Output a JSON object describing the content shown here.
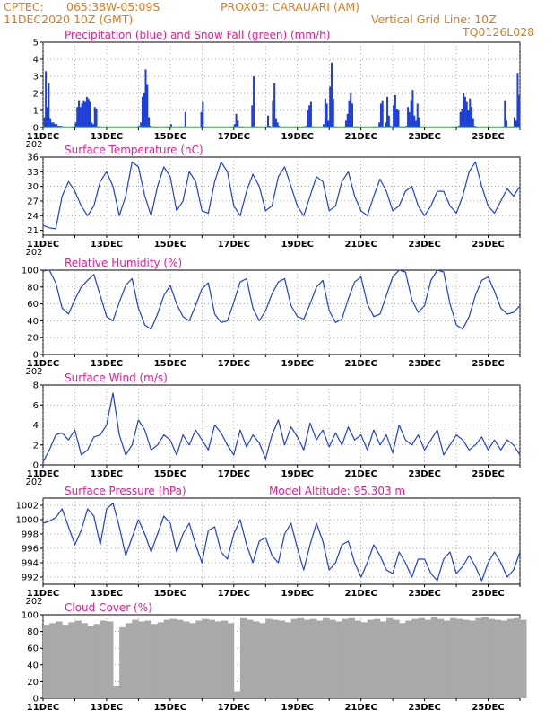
{
  "header": {
    "source": "CPTEC:",
    "coords": "065:38W-05:09S",
    "station": "PROX03: CARAUARI (AM)",
    "run": "11DEC2020 10Z (GMT)",
    "grid_note": "Vertical Grid Line: 10Z",
    "code": "TQ0126L028"
  },
  "colors": {
    "header": "#e07b1a",
    "title": "#e0208e",
    "line": "#1f3fd9",
    "snow": "#1aa81a",
    "cloud": "#a9a9a9"
  },
  "x_axis": {
    "labels": [
      "11DEC",
      "13DEC",
      "15DEC",
      "17DEC",
      "19DEC",
      "21DEC",
      "23DEC",
      "25DEC"
    ],
    "year_fragment": "202"
  },
  "chart_data": [
    {
      "type": "bar",
      "title": "Precipitation (blue) and Snow Fall (green) (mm/h)",
      "ylim": [
        0,
        5
      ],
      "yticks": [
        "0",
        "1",
        "2",
        "3",
        "4",
        "5"
      ],
      "x_range_days": [
        0,
        15
      ],
      "series": [
        {
          "name": "Precipitation",
          "x": [
            0.02,
            0.06,
            0.1,
            0.15,
            0.2,
            0.25,
            0.3,
            0.35,
            0.4,
            0.45,
            0.5,
            0.55,
            1.0,
            1.05,
            1.1,
            1.15,
            1.2,
            1.25,
            1.3,
            1.35,
            1.4,
            1.45,
            1.5,
            1.55,
            1.6,
            1.65,
            3.0,
            3.05,
            3.1,
            3.15,
            3.2,
            3.25,
            3.3,
            3.35,
            4.0,
            4.45,
            4.95,
            5.0,
            6.0,
            6.05,
            6.1,
            6.55,
            6.6,
            7.05,
            7.1,
            7.2,
            7.25,
            7.3,
            7.35,
            7.4,
            8.25,
            8.3,
            8.35,
            8.4,
            8.8,
            8.85,
            8.9,
            8.95,
            9.0,
            9.05,
            9.1,
            9.5,
            9.55,
            9.6,
            9.65,
            9.7,
            10.55,
            10.6,
            10.65,
            10.75,
            10.8,
            10.85,
            10.9,
            11.0,
            11.05,
            11.1,
            11.15,
            11.4,
            11.45,
            11.5,
            11.55,
            11.6,
            11.65,
            11.7,
            11.75,
            11.8,
            13.05,
            13.1,
            13.15,
            13.2,
            13.25,
            13.3,
            13.35,
            13.4,
            13.45,
            13.5,
            13.55,
            14.5,
            14.55,
            14.8,
            14.85,
            14.9,
            14.95
          ],
          "values": [
            0.6,
            3.3,
            1.2,
            2.6,
            0.5,
            0.3,
            0.3,
            0.2,
            0.2,
            0.1,
            0.1,
            0.1,
            0.3,
            1.2,
            1.6,
            1.2,
            1.4,
            1.6,
            1.5,
            1.8,
            1.7,
            1.5,
            0.3,
            0.2,
            1.2,
            1.1,
            0.1,
            0.3,
            1.8,
            2.0,
            3.4,
            2.5,
            0.6,
            0.1,
            0.2,
            0.9,
            0.9,
            1.5,
            0.2,
            0.8,
            0.4,
            1.3,
            3.0,
            0.7,
            0.1,
            1.6,
            2.6,
            0.5,
            0.3,
            0.1,
            0.1,
            1.0,
            1.3,
            1.5,
            0.2,
            1.7,
            1.4,
            0.4,
            2.4,
            3.8,
            1.7,
            0.4,
            0.8,
            1.6,
            2.0,
            1.4,
            0.3,
            1.4,
            1.6,
            0.3,
            1.8,
            0.7,
            0.1,
            1.3,
            1.9,
            1.1,
            1.0,
            0.1,
            1.2,
            0.9,
            1.6,
            2.2,
            0.7,
            0.4,
            1.4,
            0.6,
            0.1,
            0.9,
            1.1,
            2.0,
            1.8,
            1.5,
            1.0,
            1.7,
            1.2,
            0.5,
            0.1,
            1.6,
            0.4,
            0.6,
            0.4,
            3.2,
            1.9
          ]
        },
        {
          "name": "Snow Fall",
          "x": [
            0,
            15
          ],
          "values": [
            0,
            0
          ]
        }
      ]
    },
    {
      "type": "line",
      "title": "Surface Temperature (nC)",
      "ylim": [
        20,
        36
      ],
      "yticks": [
        "21",
        "24",
        "27",
        "30",
        "33",
        "36"
      ],
      "x": [
        0,
        0.2,
        0.4,
        0.6,
        0.8,
        1.0,
        1.2,
        1.4,
        1.6,
        1.8,
        2.0,
        2.2,
        2.4,
        2.6,
        2.8,
        3.0,
        3.2,
        3.4,
        3.6,
        3.8,
        4.0,
        4.2,
        4.4,
        4.6,
        4.8,
        5.0,
        5.2,
        5.4,
        5.6,
        5.8,
        6.0,
        6.2,
        6.4,
        6.6,
        6.8,
        7.0,
        7.2,
        7.4,
        7.6,
        7.8,
        8.0,
        8.2,
        8.4,
        8.6,
        8.8,
        9.0,
        9.2,
        9.4,
        9.6,
        9.8,
        10.0,
        10.2,
        10.4,
        10.6,
        10.8,
        11.0,
        11.2,
        11.4,
        11.6,
        11.8,
        12.0,
        12.2,
        12.4,
        12.6,
        12.8,
        13.0,
        13.2,
        13.4,
        13.6,
        13.8,
        14.0,
        14.2,
        14.4,
        14.6,
        14.8,
        15.0
      ],
      "values": [
        22,
        21.5,
        21.3,
        28,
        31,
        29,
        26,
        24,
        26,
        31,
        33,
        30,
        24,
        28,
        35,
        34,
        28,
        24,
        30,
        34,
        32,
        25,
        27,
        33,
        31,
        25,
        24.5,
        31,
        35,
        33,
        26,
        24,
        29,
        32.5,
        30,
        25,
        26,
        32,
        34,
        30,
        26,
        24,
        28,
        32,
        31,
        25,
        26,
        31,
        33,
        28,
        25,
        24,
        28,
        31.5,
        29,
        25,
        26,
        29,
        30,
        26,
        24,
        26,
        29,
        29,
        26,
        24.5,
        28,
        33,
        35,
        30,
        26,
        24.5,
        27,
        29.5,
        28,
        30
      ]
    },
    {
      "type": "line",
      "title": "Relative Humidity (%)",
      "ylim": [
        0,
        100
      ],
      "yticks": [
        "0",
        "20",
        "40",
        "60",
        "80",
        "100"
      ],
      "x": [
        0,
        0.2,
        0.4,
        0.6,
        0.8,
        1.0,
        1.2,
        1.4,
        1.6,
        1.8,
        2.0,
        2.2,
        2.4,
        2.6,
        2.8,
        3.0,
        3.2,
        3.4,
        3.6,
        3.8,
        4.0,
        4.2,
        4.4,
        4.6,
        4.8,
        5.0,
        5.2,
        5.4,
        5.6,
        5.8,
        6.0,
        6.2,
        6.4,
        6.6,
        6.8,
        7.0,
        7.2,
        7.4,
        7.6,
        7.8,
        8.0,
        8.2,
        8.4,
        8.6,
        8.8,
        9.0,
        9.2,
        9.4,
        9.6,
        9.8,
        10.0,
        10.2,
        10.4,
        10.6,
        10.8,
        11.0,
        11.2,
        11.4,
        11.6,
        11.8,
        12.0,
        12.2,
        12.4,
        12.6,
        12.8,
        13.0,
        13.2,
        13.4,
        13.6,
        13.8,
        14.0,
        14.2,
        14.4,
        14.6,
        14.8,
        15.0
      ],
      "values": [
        99,
        100,
        85,
        55,
        48,
        65,
        80,
        88,
        95,
        70,
        45,
        40,
        62,
        82,
        90,
        55,
        35,
        30,
        48,
        70,
        82,
        60,
        45,
        40,
        58,
        78,
        85,
        48,
        38,
        40,
        62,
        86,
        90,
        55,
        40,
        52,
        72,
        86,
        90,
        58,
        45,
        42,
        60,
        80,
        88,
        52,
        38,
        42,
        66,
        86,
        92,
        60,
        45,
        48,
        70,
        92,
        100,
        98,
        65,
        50,
        58,
        88,
        100,
        98,
        60,
        35,
        30,
        45,
        70,
        88,
        92,
        75,
        55,
        48,
        50,
        58
      ]
    },
    {
      "type": "line",
      "title": "Surface Wind (m/s)",
      "ylim": [
        0,
        8
      ],
      "yticks": [
        "0",
        "2",
        "4",
        "6",
        "8"
      ],
      "x": [
        0,
        0.2,
        0.4,
        0.6,
        0.8,
        1.0,
        1.2,
        1.4,
        1.6,
        1.8,
        2.0,
        2.2,
        2.4,
        2.6,
        2.8,
        3.0,
        3.2,
        3.4,
        3.6,
        3.8,
        4.0,
        4.2,
        4.4,
        4.6,
        4.8,
        5.0,
        5.2,
        5.4,
        5.6,
        5.8,
        6.0,
        6.2,
        6.4,
        6.6,
        6.8,
        7.0,
        7.2,
        7.4,
        7.6,
        7.8,
        8.0,
        8.2,
        8.4,
        8.6,
        8.8,
        9.0,
        9.2,
        9.4,
        9.6,
        9.8,
        10.0,
        10.2,
        10.4,
        10.6,
        10.8,
        11.0,
        11.2,
        11.4,
        11.6,
        11.8,
        12.0,
        12.2,
        12.4,
        12.6,
        12.8,
        13.0,
        13.2,
        13.4,
        13.6,
        13.8,
        14.0,
        14.2,
        14.4,
        14.6,
        14.8,
        15.0
      ],
      "values": [
        0.3,
        1.5,
        3.0,
        3.2,
        2.5,
        3.5,
        1.0,
        1.5,
        2.8,
        3.0,
        4.0,
        7.2,
        3.0,
        1.0,
        2.0,
        4.5,
        3.5,
        1.5,
        2.0,
        3.0,
        2.5,
        1.0,
        3.0,
        2.0,
        3.5,
        2.5,
        1.5,
        4.0,
        3.2,
        2.0,
        1.0,
        3.5,
        1.8,
        3.0,
        2.2,
        0.6,
        3.0,
        4.5,
        2.0,
        3.8,
        2.8,
        1.5,
        4.2,
        2.5,
        3.5,
        1.8,
        3.2,
        2.0,
        3.8,
        2.5,
        3.0,
        1.5,
        3.5,
        2.0,
        3.0,
        1.2,
        4.0,
        2.5,
        2.0,
        3.0,
        1.5,
        2.5,
        3.5,
        1.0,
        2.0,
        3.0,
        2.5,
        1.5,
        2.0,
        2.8,
        1.5,
        2.5,
        1.5,
        2.5,
        2.0,
        1.0
      ]
    },
    {
      "type": "line",
      "title": "Surface Pressure (hPa)",
      "annotation": "Model Altitude: 95.303 m",
      "ylim": [
        991,
        1003
      ],
      "yticks": [
        "992",
        "994",
        "996",
        "998",
        "1000",
        "1002"
      ],
      "x": [
        0,
        0.2,
        0.4,
        0.6,
        0.8,
        1.0,
        1.2,
        1.4,
        1.6,
        1.8,
        2.0,
        2.2,
        2.4,
        2.6,
        2.8,
        3.0,
        3.2,
        3.4,
        3.6,
        3.8,
        4.0,
        4.2,
        4.4,
        4.6,
        4.8,
        5.0,
        5.2,
        5.4,
        5.6,
        5.8,
        6.0,
        6.2,
        6.4,
        6.6,
        6.8,
        7.0,
        7.2,
        7.4,
        7.6,
        7.8,
        8.0,
        8.2,
        8.4,
        8.6,
        8.8,
        9.0,
        9.2,
        9.4,
        9.6,
        9.8,
        10.0,
        10.2,
        10.4,
        10.6,
        10.8,
        11.0,
        11.2,
        11.4,
        11.6,
        11.8,
        12.0,
        12.2,
        12.4,
        12.6,
        12.8,
        13.0,
        13.2,
        13.4,
        13.6,
        13.8,
        14.0,
        14.2,
        14.4,
        14.6,
        14.8,
        15.0
      ],
      "values": [
        999.5,
        999.8,
        1000.3,
        1001.5,
        999,
        996.5,
        998.5,
        1001.5,
        1000.5,
        996.5,
        1001.5,
        1002.3,
        999,
        995,
        997.5,
        1000,
        998,
        995.5,
        998,
        1000.5,
        999.5,
        995.5,
        998,
        999.5,
        996.5,
        994,
        998.5,
        999,
        995.5,
        994.5,
        998,
        1000,
        996.5,
        994,
        997,
        997.5,
        995,
        994,
        998,
        999.5,
        996,
        993,
        996.5,
        999.5,
        997,
        993,
        994,
        996.5,
        997,
        994,
        992,
        994,
        996.5,
        995,
        993,
        992.5,
        995.5,
        994,
        992,
        994.5,
        994.5,
        992.5,
        991.5,
        994.5,
        995.5,
        992.5,
        993.5,
        995,
        993.5,
        991.5,
        994,
        995.5,
        994,
        992,
        993,
        995.5
      ]
    },
    {
      "type": "area",
      "title": "Cloud Cover (%)",
      "ylim": [
        0,
        100
      ],
      "yticks": [
        "0",
        "20",
        "40",
        "60",
        "80",
        "100"
      ],
      "x": [
        0,
        0.2,
        0.4,
        0.6,
        0.8,
        1.0,
        1.2,
        1.4,
        1.6,
        1.8,
        2.0,
        2.2,
        2.4,
        2.6,
        2.8,
        3.0,
        3.2,
        3.4,
        3.6,
        3.8,
        4.0,
        4.2,
        4.4,
        4.6,
        4.8,
        5.0,
        5.2,
        5.4,
        5.6,
        5.8,
        6.0,
        6.2,
        6.4,
        6.6,
        6.8,
        7.0,
        7.2,
        7.4,
        7.6,
        7.8,
        8.0,
        8.2,
        8.4,
        8.6,
        8.8,
        9.0,
        9.2,
        9.4,
        9.6,
        9.8,
        10.0,
        10.2,
        10.4,
        10.6,
        10.8,
        11.0,
        11.2,
        11.4,
        11.6,
        11.8,
        12.0,
        12.2,
        12.4,
        12.6,
        12.8,
        13.0,
        13.2,
        13.4,
        13.6,
        13.8,
        14.0,
        14.2,
        14.4,
        14.6,
        14.8,
        15.0
      ],
      "values": [
        88,
        90,
        92,
        88,
        91,
        93,
        90,
        87,
        89,
        93,
        92,
        15,
        85,
        90,
        94,
        92,
        93,
        89,
        91,
        94,
        95,
        94,
        92,
        90,
        93,
        95,
        94,
        92,
        93,
        90,
        8,
        96,
        94,
        92,
        90,
        95,
        94,
        93,
        91,
        95,
        96,
        94,
        95,
        93,
        96,
        94,
        92,
        95,
        96,
        93,
        91,
        94,
        95,
        92,
        96,
        94,
        90,
        93,
        95,
        96,
        94,
        97,
        95,
        93,
        96,
        95,
        94,
        93,
        96,
        97,
        95,
        94,
        93,
        95,
        96,
        94
      ]
    }
  ]
}
